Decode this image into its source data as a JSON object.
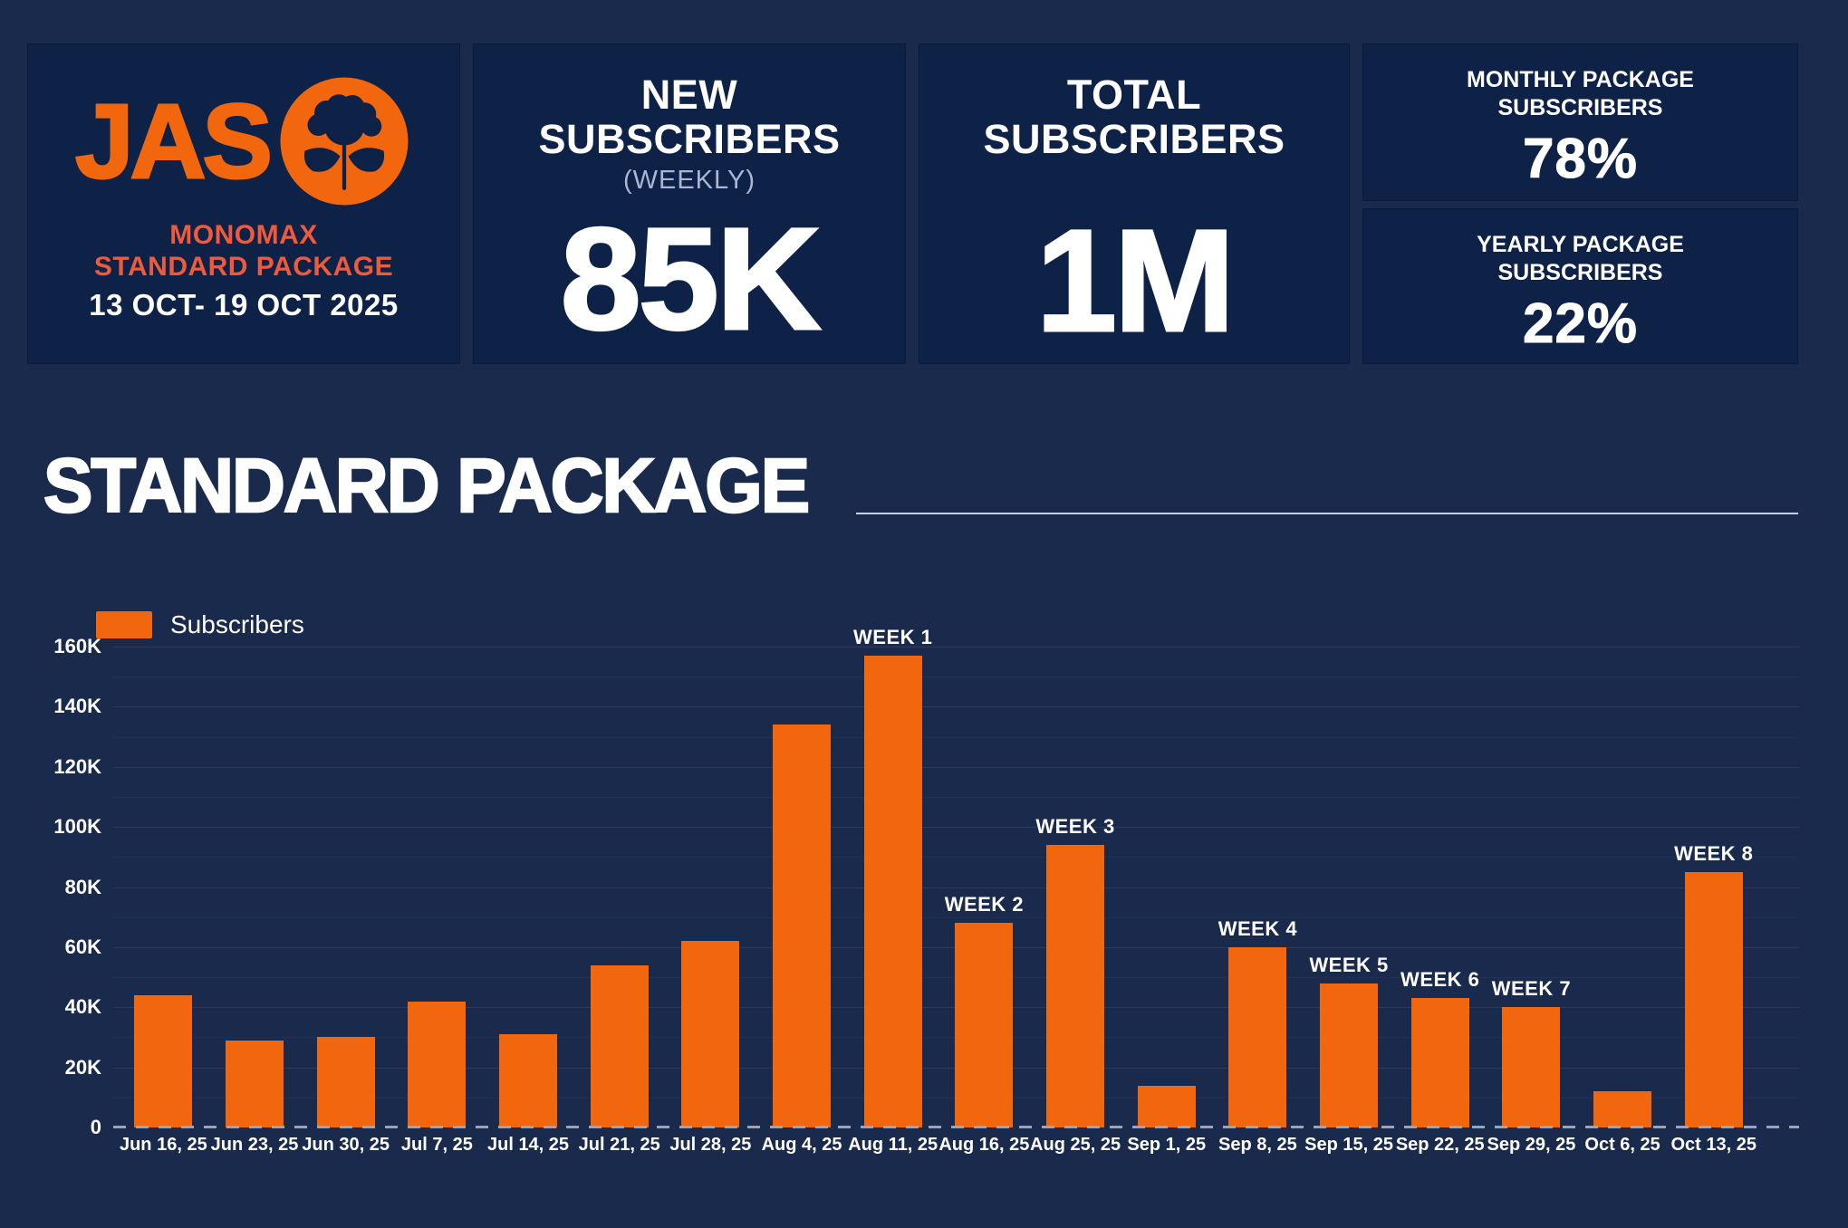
{
  "colors": {
    "background": "#192A4C",
    "panel": "#0E2146",
    "accent_orange": "#F2660D",
    "accent_salmon": "#ED5A3C",
    "muted_text": "#A9B6D4"
  },
  "header": {
    "logo": {
      "brand": "JAS",
      "subtitle_line1": "MONOMAX",
      "subtitle_line2": "STANDARD PACKAGE",
      "date_range": "13 OCT- 19 OCT 2025"
    },
    "stats": [
      {
        "title_line1": "NEW",
        "title_line2": "SUBSCRIBERS",
        "subtitle": "(WEEKLY)",
        "value": "85K"
      },
      {
        "title_line1": "TOTAL",
        "title_line2": "SUBSCRIBERS",
        "value": "1M"
      }
    ],
    "side_stats": [
      {
        "label_line1": "MONTHLY PACKAGE",
        "label_line2": "SUBSCRIBERS",
        "value": "78%"
      },
      {
        "label_line1": "YEARLY PACKAGE",
        "label_line2": "SUBSCRIBERS",
        "value": "22%"
      }
    ]
  },
  "section": {
    "title": "STANDARD PACKAGE"
  },
  "chart_data": {
    "type": "bar",
    "title": "",
    "xlabel": "",
    "ylabel": "",
    "legend_position": "top-left",
    "grid": true,
    "legend": [
      {
        "name": "Subscribers",
        "color": "#F2660D"
      }
    ],
    "categories": [
      "Jun 16, 25",
      "Jun 23, 25",
      "Jun 30, 25",
      "Jul 7, 25",
      "Jul 14, 25",
      "Jul 21, 25",
      "Jul 28, 25",
      "Aug 4, 25",
      "Aug 11, 25",
      "Aug 16, 25",
      "Aug 25, 25",
      "Sep 1, 25",
      "Sep 8, 25",
      "Sep 15, 25",
      "Sep 22, 25",
      "Sep 29, 25",
      "Oct 6, 25",
      "Oct 13, 25"
    ],
    "series": [
      {
        "name": "Subscribers",
        "values": [
          44000,
          29000,
          30000,
          42000,
          31000,
          54000,
          62000,
          134000,
          157000,
          68000,
          94000,
          14000,
          60000,
          48000,
          43000,
          40000,
          12000,
          85000
        ]
      }
    ],
    "bar_labels": [
      "",
      "",
      "",
      "",
      "",
      "",
      "",
      "",
      "WEEK 1",
      "WEEK 2",
      "WEEK 3",
      "",
      "WEEK 4",
      "WEEK 5",
      "WEEK 6",
      "WEEK 7",
      "",
      "WEEK 8"
    ],
    "ylim": [
      0,
      160000
    ],
    "ytick_labels": [
      "160K",
      "140K",
      "120K",
      "100K",
      "80K",
      "60K",
      "40K",
      "20K",
      "0"
    ],
    "ytick_values": [
      160000,
      140000,
      120000,
      100000,
      80000,
      60000,
      40000,
      20000,
      0
    ]
  }
}
